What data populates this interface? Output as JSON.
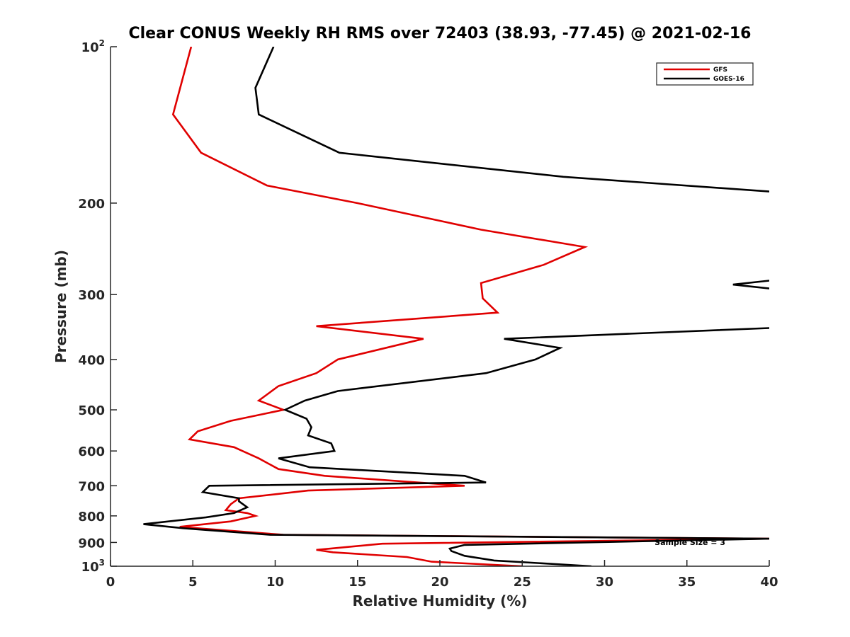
{
  "chart_data": {
    "type": "line",
    "title": "Clear CONUS Weekly RH RMS over 72403 (38.93, -77.45) @ 2021-02-16",
    "xlabel": "Relative Humidity (%)",
    "ylabel": "Pressure (mb)",
    "xlim": [
      0,
      40
    ],
    "ylim": [
      100,
      1000
    ],
    "y_scale": "log",
    "y_reversed": true,
    "grid": false,
    "legend_position": "top-right",
    "x_ticks": [
      0,
      5,
      10,
      15,
      20,
      25,
      30,
      35,
      40
    ],
    "x_tick_labels": [
      "0",
      "5",
      "10",
      "15",
      "20",
      "25",
      "30",
      "35",
      "40"
    ],
    "y_ticks": [
      {
        "value": 100,
        "base": "10",
        "exp": "2"
      },
      {
        "value": 200,
        "base": "200",
        "exp": ""
      },
      {
        "value": 300,
        "base": "300",
        "exp": ""
      },
      {
        "value": 400,
        "base": "400",
        "exp": ""
      },
      {
        "value": 500,
        "base": "500",
        "exp": ""
      },
      {
        "value": 600,
        "base": "600",
        "exp": ""
      },
      {
        "value": 700,
        "base": "700",
        "exp": ""
      },
      {
        "value": 800,
        "base": "800",
        "exp": ""
      },
      {
        "value": 900,
        "base": "900",
        "exp": ""
      },
      {
        "value": 1000,
        "base": "10",
        "exp": "3"
      }
    ],
    "annotation": "Sample Size = 3",
    "series": [
      {
        "name": "GFS",
        "color": "#e00000",
        "points": [
          [
            4.9,
            100
          ],
          [
            3.8,
            135
          ],
          [
            5.5,
            160
          ],
          [
            9.5,
            185
          ],
          [
            15,
            200
          ],
          [
            22.5,
            225
          ],
          [
            28.8,
            243
          ],
          [
            26.3,
            263
          ],
          [
            22.5,
            285
          ],
          [
            22.6,
            305
          ],
          [
            23.5,
            325
          ],
          [
            12.5,
            345
          ],
          [
            19,
            365
          ],
          [
            13.8,
            400
          ],
          [
            12.5,
            425
          ],
          [
            10.2,
            450
          ],
          [
            9.0,
            480
          ],
          [
            10.5,
            500
          ],
          [
            7.3,
            525
          ],
          [
            5.3,
            550
          ],
          [
            4.8,
            570
          ],
          [
            7.5,
            590
          ],
          [
            9.0,
            620
          ],
          [
            10.2,
            650
          ],
          [
            13,
            670
          ],
          [
            21.5,
            700
          ],
          [
            12.0,
            715
          ],
          [
            7.8,
            740
          ],
          [
            7.3,
            760
          ],
          [
            7.0,
            780
          ],
          [
            8.3,
            790
          ],
          [
            8.8,
            800
          ],
          [
            7.3,
            820
          ],
          [
            4.2,
            840
          ],
          [
            10.5,
            870
          ],
          [
            40,
            885
          ],
          [
            16.5,
            905
          ],
          [
            12.5,
            930
          ],
          [
            13.5,
            940
          ],
          [
            18,
            960
          ],
          [
            19.5,
            980
          ],
          [
            25,
            1000
          ]
        ]
      },
      {
        "name": "GOES-16",
        "color": "#000000",
        "points": [
          [
            9.9,
            100
          ],
          [
            8.8,
            120
          ],
          [
            9.0,
            135
          ],
          [
            13.9,
            160
          ],
          [
            27.5,
            178
          ],
          [
            40,
            190
          ],
          null,
          [
            40,
            282
          ],
          [
            37.8,
            287
          ],
          [
            40,
            292
          ],
          null,
          [
            40,
            348
          ],
          [
            23.9,
            365
          ],
          [
            27.3,
            380
          ],
          [
            25.8,
            400
          ],
          [
            22.8,
            425
          ],
          [
            13.8,
            460
          ],
          [
            11.8,
            480
          ],
          [
            10.6,
            500
          ],
          [
            11.9,
            520
          ],
          [
            12.2,
            540
          ],
          [
            12,
            560
          ],
          [
            13.4,
            580
          ],
          [
            13.6,
            600
          ],
          [
            10.2,
            620
          ],
          [
            12.1,
            645
          ],
          [
            21.5,
            670
          ],
          [
            22.8,
            690
          ],
          [
            6.0,
            700
          ],
          [
            5.6,
            720
          ],
          [
            7.8,
            740
          ],
          [
            7.8,
            750
          ],
          [
            8.3,
            770
          ],
          [
            7.5,
            790
          ],
          [
            5.8,
            805
          ],
          [
            2.0,
            830
          ],
          [
            4.4,
            845
          ],
          [
            9.7,
            870
          ],
          [
            40,
            885
          ],
          [
            21.5,
            910
          ],
          [
            20.6,
            925
          ],
          [
            20.7,
            935
          ],
          [
            21.5,
            955
          ],
          [
            23.3,
            975
          ],
          [
            29.2,
            1000
          ]
        ]
      }
    ]
  }
}
